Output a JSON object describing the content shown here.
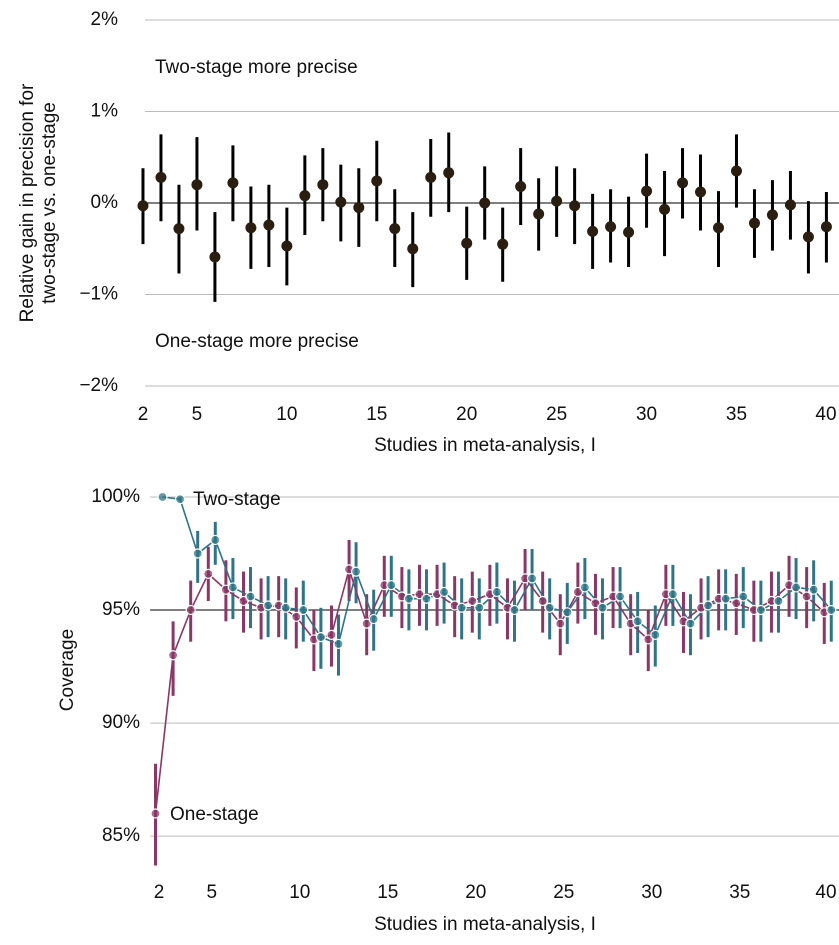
{
  "chart_data": [
    {
      "type": "errorbar",
      "ylabel": [
        "Relative gain in precision for",
        "two-stage vs. one-stage"
      ],
      "xlabel": "Studies in meta-analysis, I",
      "annotations": [
        {
          "text": "Two-stage more precise",
          "color": "#2f7587"
        },
        {
          "text": "One-stage more precise",
          "color": "#8a3766"
        }
      ],
      "x": [
        2,
        3,
        4,
        5,
        6,
        7,
        8,
        9,
        10,
        11,
        12,
        13,
        14,
        15,
        16,
        17,
        18,
        19,
        20,
        21,
        22,
        23,
        24,
        25,
        26,
        27,
        28,
        29,
        30,
        31,
        32,
        33,
        34,
        35,
        36,
        37,
        38,
        39,
        40
      ],
      "values": [
        -0.03,
        0.28,
        -0.28,
        0.2,
        -0.59,
        0.22,
        -0.27,
        -0.24,
        -0.47,
        0.08,
        0.2,
        0.01,
        -0.05,
        0.24,
        -0.28,
        -0.5,
        0.28,
        0.33,
        -0.44,
        0,
        -0.45,
        0.18,
        -0.12,
        0.02,
        -0.03,
        -0.31,
        -0.26,
        -0.32,
        0.13,
        -0.07,
        0.22,
        0.12,
        -0.27,
        0.35,
        -0.22,
        -0.13,
        -0.02,
        -0.37,
        -0.26
      ],
      "lower": [
        -0.45,
        -0.2,
        -0.77,
        -0.3,
        -1.08,
        -0.2,
        -0.72,
        -0.7,
        -0.9,
        -0.35,
        -0.2,
        -0.42,
        -0.48,
        -0.2,
        -0.7,
        -0.92,
        -0.15,
        -0.1,
        -0.84,
        -0.4,
        -0.86,
        -0.24,
        -0.52,
        -0.37,
        -0.45,
        -0.72,
        -0.65,
        -0.7,
        -0.27,
        -0.58,
        -0.17,
        -0.3,
        -0.7,
        -0.05,
        -0.6,
        -0.52,
        -0.4,
        -0.77,
        -0.65
      ],
      "upper": [
        0.38,
        0.75,
        0.2,
        0.72,
        -0.1,
        0.63,
        0.18,
        0.2,
        -0.05,
        0.52,
        0.6,
        0.42,
        0.38,
        0.68,
        0.15,
        -0.1,
        0.7,
        0.77,
        -0.04,
        0.4,
        -0.05,
        0.6,
        0.27,
        0.4,
        0.38,
        0.1,
        0.15,
        0.07,
        0.54,
        0.35,
        0.6,
        0.53,
        0.13,
        0.75,
        0.15,
        0.25,
        0.35,
        0.02,
        0.12
      ],
      "color": "#2a1e10",
      "reference_line": 0,
      "xlim": [
        1,
        40.7
      ],
      "ylim": [
        -2.2,
        2.2
      ],
      "xticks": [
        2,
        5,
        10,
        15,
        20,
        25,
        30,
        35,
        40
      ],
      "yticks": [
        {
          "value": 2,
          "label": "2%"
        },
        {
          "value": 1,
          "label": "1%"
        },
        {
          "value": 0,
          "label": "0%"
        },
        {
          "value": -1,
          "label": "−1%"
        },
        {
          "value": -2,
          "label": "−2%"
        }
      ],
      "grid": true
    },
    {
      "type": "line",
      "ylabel": "Coverage",
      "xlabel": "Studies in meta-analysis, I",
      "x": [
        2,
        3,
        4,
        5,
        6,
        7,
        8,
        9,
        10,
        11,
        12,
        13,
        14,
        15,
        16,
        17,
        18,
        19,
        20,
        21,
        22,
        23,
        24,
        25,
        26,
        27,
        28,
        29,
        30,
        31,
        32,
        33,
        34,
        35,
        36,
        37,
        38,
        39,
        40
      ],
      "series": [
        {
          "name": "One-stage",
          "color": "#8a3766",
          "values": [
            86.0,
            93.0,
            95.0,
            96.6,
            95.9,
            95.4,
            95.1,
            95.2,
            94.7,
            93.7,
            93.9,
            96.8,
            94.4,
            96.1,
            95.6,
            95.7,
            95.7,
            95.2,
            95.4,
            95.7,
            95.1,
            96.4,
            95.4,
            94.4,
            95.8,
            95.3,
            95.6,
            94.4,
            93.7,
            95.7,
            94.5,
            95.1,
            95.5,
            95.3,
            95.0,
            95.4,
            96.1,
            95.6,
            94.9
          ],
          "lower": [
            83.7,
            91.2,
            93.6,
            95.4,
            94.5,
            94.0,
            93.7,
            93.8,
            93.3,
            92.3,
            92.5,
            95.4,
            93.0,
            94.7,
            94.2,
            94.3,
            94.3,
            93.8,
            94.0,
            94.3,
            93.7,
            95.0,
            94.0,
            93.0,
            94.4,
            93.9,
            94.2,
            93.0,
            92.3,
            94.3,
            93.1,
            93.7,
            94.1,
            93.9,
            93.6,
            94.0,
            94.7,
            94.2,
            93.5
          ],
          "upper": [
            88.2,
            94.5,
            96.3,
            97.8,
            97.2,
            96.7,
            96.4,
            96.5,
            96.0,
            95.0,
            95.2,
            98.1,
            95.7,
            97.4,
            96.9,
            97.0,
            97.0,
            96.5,
            96.7,
            97.0,
            96.4,
            97.7,
            96.7,
            95.7,
            97.1,
            96.6,
            96.9,
            95.7,
            95.0,
            97.0,
            95.8,
            96.4,
            96.8,
            96.6,
            96.3,
            96.7,
            97.4,
            96.9,
            96.2
          ]
        },
        {
          "name": "Two-stage",
          "color": "#2f7587",
          "values": [
            100.0,
            99.9,
            97.5,
            98.1,
            96.0,
            95.6,
            95.2,
            95.1,
            95.0,
            93.8,
            93.5,
            96.7,
            94.6,
            96.1,
            95.5,
            95.5,
            95.8,
            95.1,
            95.1,
            95.8,
            95.0,
            96.4,
            95.1,
            94.9,
            96.0,
            95.1,
            95.6,
            94.5,
            93.9,
            95.7,
            94.4,
            95.2,
            95.5,
            95.6,
            95.0,
            95.4,
            96.0,
            95.9,
            95.0
          ],
          "lower": [
            100.0,
            99.8,
            96.2,
            97.0,
            94.6,
            94.2,
            93.8,
            93.7,
            93.6,
            92.4,
            92.1,
            95.3,
            93.2,
            94.7,
            94.1,
            94.1,
            94.4,
            93.7,
            93.7,
            94.4,
            93.6,
            95.0,
            93.7,
            93.5,
            94.6,
            93.7,
            94.2,
            93.1,
            92.5,
            94.3,
            93.0,
            93.8,
            94.1,
            94.2,
            93.6,
            94.0,
            94.6,
            94.5,
            93.6
          ],
          "upper": [
            100.0,
            100.0,
            98.5,
            98.9,
            97.3,
            96.9,
            96.5,
            96.4,
            96.3,
            95.1,
            94.8,
            98.0,
            95.9,
            97.4,
            96.8,
            96.8,
            97.1,
            96.4,
            96.4,
            97.1,
            96.3,
            97.7,
            96.4,
            96.2,
            97.3,
            96.4,
            96.9,
            95.8,
            95.2,
            97.0,
            95.7,
            96.5,
            96.8,
            96.9,
            96.3,
            96.7,
            97.3,
            97.2,
            96.3
          ]
        }
      ],
      "reference_line": 95,
      "xlim": [
        1.5,
        40.4
      ],
      "ylim": [
        83.5,
        101
      ],
      "xticks": [
        2,
        5,
        10,
        15,
        20,
        25,
        30,
        35,
        40
      ],
      "yticks": [
        {
          "value": 100,
          "label": "100%"
        },
        {
          "value": 95,
          "label": "95%"
        },
        {
          "value": 90,
          "label": "90%"
        },
        {
          "value": 85,
          "label": "85%"
        }
      ],
      "grid": true
    }
  ]
}
